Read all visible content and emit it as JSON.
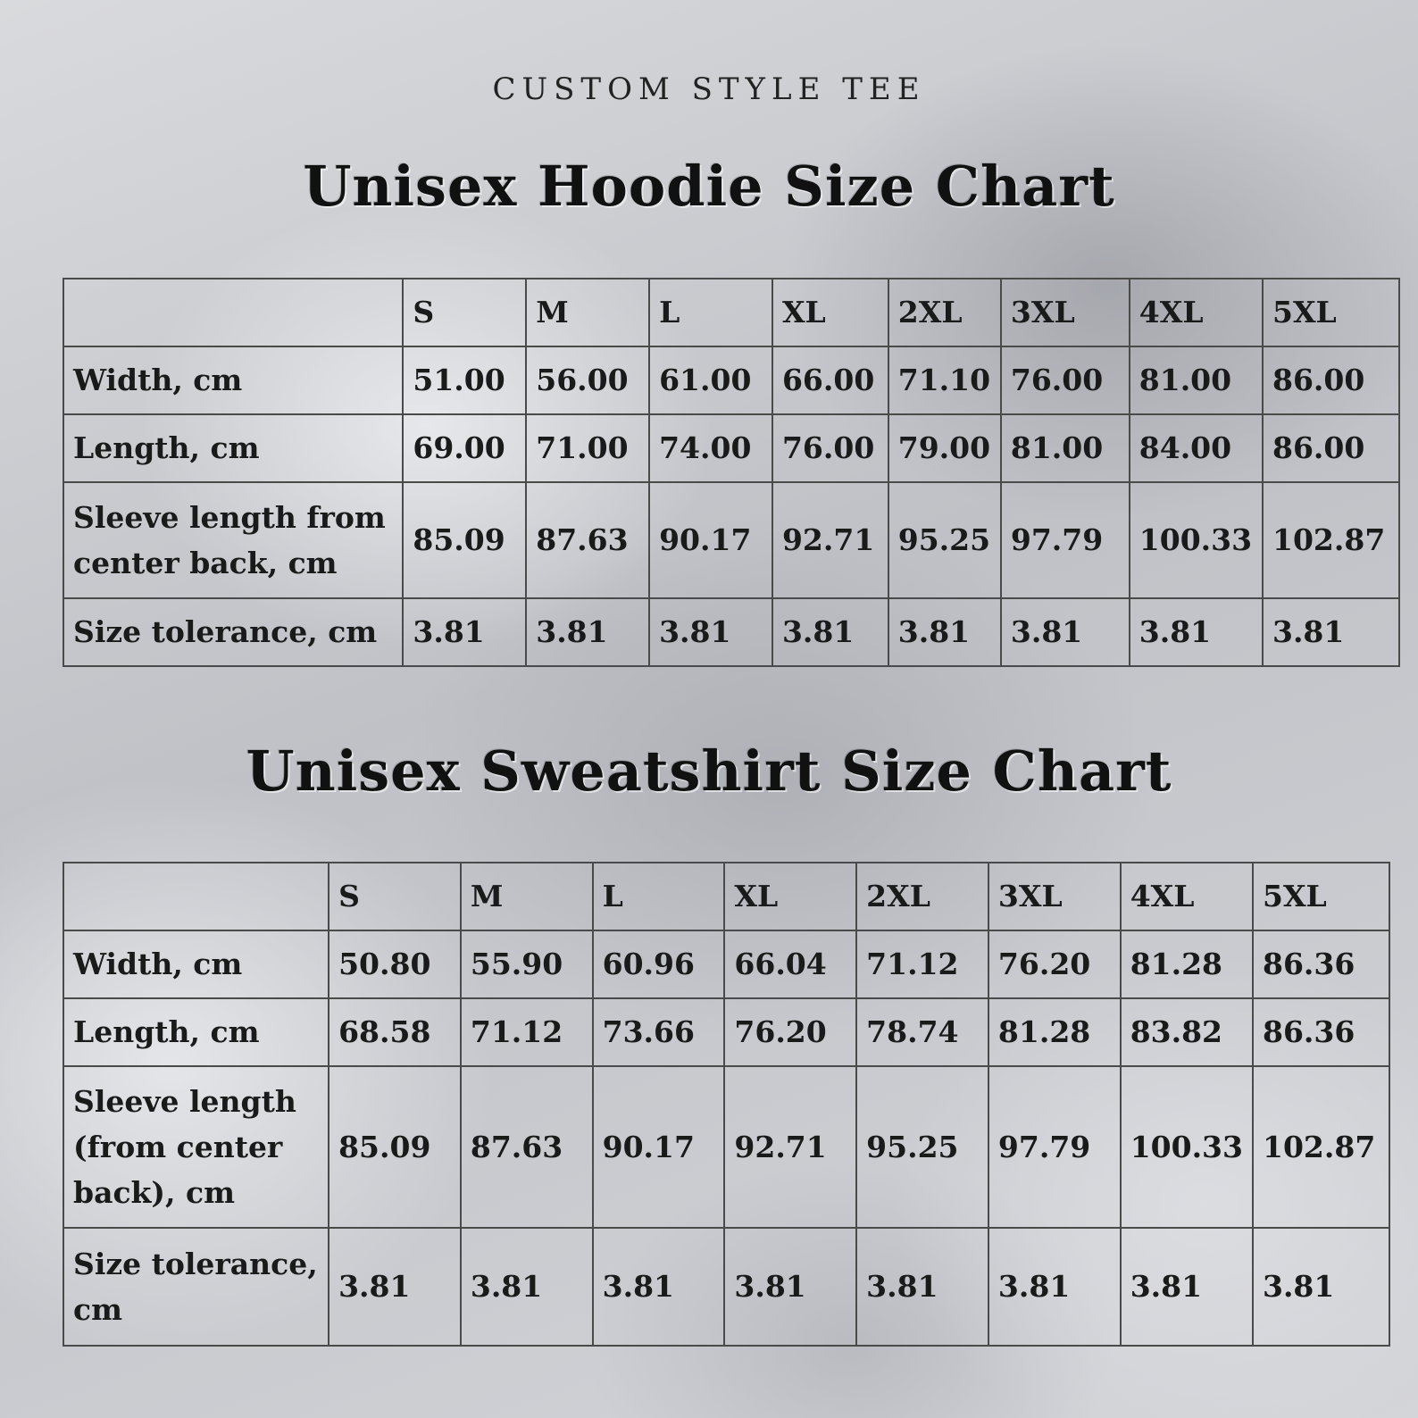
{
  "brand": "CUSTOM STYLE TEE",
  "hoodie": {
    "title": "Unisex Hoodie Size Chart",
    "sizes": [
      "S",
      "M",
      "L",
      "XL",
      "2XL",
      "3XL",
      "4XL",
      "5XL"
    ],
    "rows": [
      {
        "label": "Width, cm",
        "values": [
          "51.00",
          "56.00",
          "61.00",
          "66.00",
          "71.10",
          "76.00",
          "81.00",
          "86.00"
        ]
      },
      {
        "label": "Length, cm",
        "values": [
          "69.00",
          "71.00",
          "74.00",
          "76.00",
          "79.00",
          "81.00",
          "84.00",
          "86.00"
        ]
      },
      {
        "label": "Sleeve length from center back, cm",
        "values": [
          "85.09",
          "87.63",
          "90.17",
          "92.71",
          "95.25",
          "97.79",
          "100.33",
          "102.87"
        ]
      },
      {
        "label": "Size tolerance, cm",
        "values": [
          "3.81",
          "3.81",
          "3.81",
          "3.81",
          "3.81",
          "3.81",
          "3.81",
          "3.81"
        ]
      }
    ]
  },
  "sweatshirt": {
    "title": "Unisex Sweatshirt Size Chart",
    "sizes": [
      "S",
      "M",
      "L",
      "XL",
      "2XL",
      "3XL",
      "4XL",
      "5XL"
    ],
    "rows": [
      {
        "label": "Width, cm",
        "values": [
          "50.80",
          "55.90",
          "60.96",
          "66.04",
          "71.12",
          "76.20",
          "81.28",
          "86.36"
        ]
      },
      {
        "label": "Length, cm",
        "values": [
          "68.58",
          "71.12",
          "73.66",
          "76.20",
          "78.74",
          "81.28",
          "83.82",
          "86.36"
        ]
      },
      {
        "label": "Sleeve length (from center back), cm",
        "values": [
          "85.09",
          "87.63",
          "90.17",
          "92.71",
          "95.25",
          "97.79",
          "100.33",
          "102.87"
        ]
      },
      {
        "label": "Size tolerance, cm",
        "values": [
          "3.81",
          "3.81",
          "3.81",
          "3.81",
          "3.81",
          "3.81",
          "3.81",
          "3.81"
        ]
      }
    ]
  }
}
